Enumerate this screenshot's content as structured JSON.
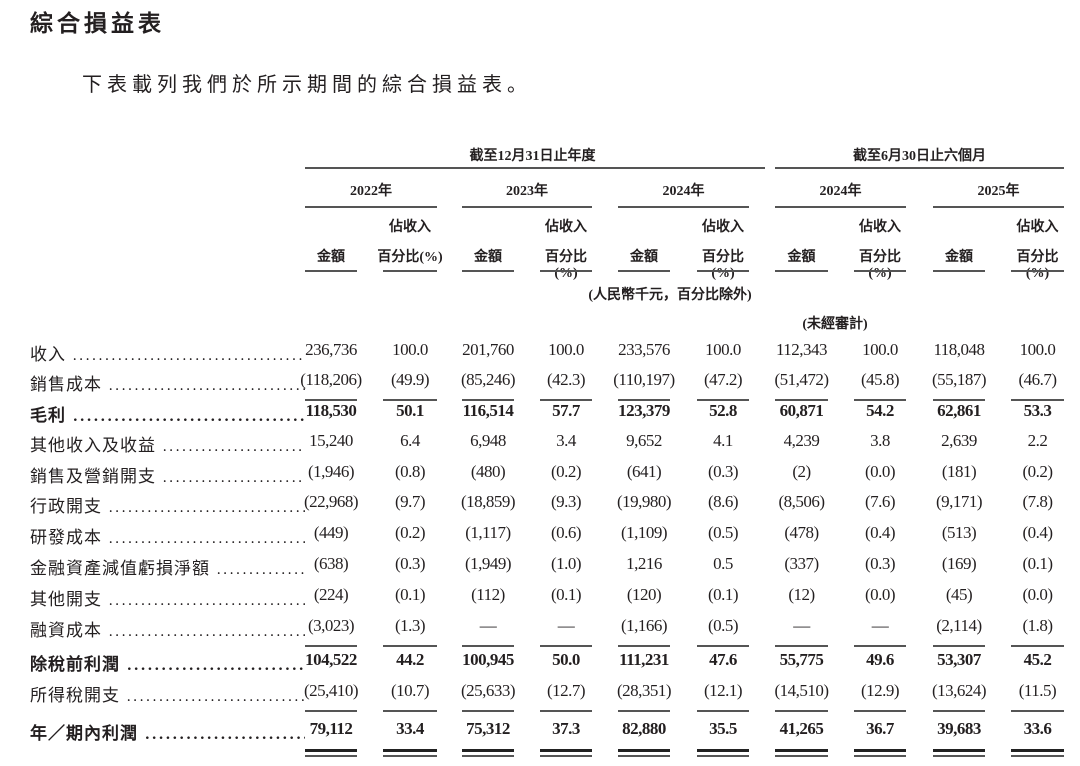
{
  "title": "綜合損益表",
  "intro": "下表載列我們於所示期間的綜合損益表。",
  "header": {
    "group_annual": "截至12月31日止年度",
    "group_interim": "截至6月30日止六個月",
    "years": [
      "2022年",
      "2023年",
      "2024年",
      "2024年",
      "2025年"
    ],
    "amount_label": "金額",
    "pct_label_line1": "佔收入",
    "pct_label_line2": "百分比(%)",
    "unit_note": "(人民幣千元，百分比除外)",
    "unaudited_note": "(未經審計)"
  },
  "rows": [
    {
      "label": "收入",
      "bold": false,
      "values": [
        "236,736",
        "100.0",
        "201,760",
        "100.0",
        "233,576",
        "100.0",
        "112,343",
        "100.0",
        "118,048",
        "100.0"
      ]
    },
    {
      "label": "銷售成本",
      "bold": false,
      "rule": "single",
      "values": [
        "(118,206)",
        "(49.9)",
        "(85,246)",
        "(42.3)",
        "(110,197)",
        "(47.2)",
        "(51,472)",
        "(45.8)",
        "(55,187)",
        "(46.7)"
      ]
    },
    {
      "label": "毛利",
      "bold": true,
      "values": [
        "118,530",
        "50.1",
        "116,514",
        "57.7",
        "123,379",
        "52.8",
        "60,871",
        "54.2",
        "62,861",
        "53.3"
      ]
    },
    {
      "label": "其他收入及收益",
      "bold": false,
      "values": [
        "15,240",
        "6.4",
        "6,948",
        "3.4",
        "9,652",
        "4.1",
        "4,239",
        "3.8",
        "2,639",
        "2.2"
      ]
    },
    {
      "label": "銷售及營銷開支",
      "bold": false,
      "values": [
        "(1,946)",
        "(0.8)",
        "(480)",
        "(0.2)",
        "(641)",
        "(0.3)",
        "(2)",
        "(0.0)",
        "(181)",
        "(0.2)"
      ]
    },
    {
      "label": "行政開支",
      "bold": false,
      "values": [
        "(22,968)",
        "(9.7)",
        "(18,859)",
        "(9.3)",
        "(19,980)",
        "(8.6)",
        "(8,506)",
        "(7.6)",
        "(9,171)",
        "(7.8)"
      ]
    },
    {
      "label": "研發成本",
      "bold": false,
      "values": [
        "(449)",
        "(0.2)",
        "(1,117)",
        "(0.6)",
        "(1,109)",
        "(0.5)",
        "(478)",
        "(0.4)",
        "(513)",
        "(0.4)"
      ]
    },
    {
      "label": "金融資產減值虧損淨額",
      "bold": false,
      "values": [
        "(638)",
        "(0.3)",
        "(1,949)",
        "(1.0)",
        "1,216",
        "0.5",
        "(337)",
        "(0.3)",
        "(169)",
        "(0.1)"
      ]
    },
    {
      "label": "其他開支",
      "bold": false,
      "values": [
        "(224)",
        "(0.1)",
        "(112)",
        "(0.1)",
        "(120)",
        "(0.1)",
        "(12)",
        "(0.0)",
        "(45)",
        "(0.0)"
      ]
    },
    {
      "label": "融資成本",
      "bold": false,
      "rule": "single",
      "values": [
        "(3,023)",
        "(1.3)",
        "—",
        "—",
        "(1,166)",
        "(0.5)",
        "—",
        "—",
        "(2,114)",
        "(1.8)"
      ]
    },
    {
      "label": "除稅前利潤",
      "bold": true,
      "values": [
        "104,522",
        "44.2",
        "100,945",
        "50.0",
        "111,231",
        "47.6",
        "55,775",
        "49.6",
        "53,307",
        "45.2"
      ]
    },
    {
      "label": "所得稅開支",
      "bold": false,
      "rule": "single",
      "values": [
        "(25,410)",
        "(10.7)",
        "(25,633)",
        "(12.7)",
        "(28,351)",
        "(12.1)",
        "(14,510)",
        "(12.9)",
        "(13,624)",
        "(11.5)"
      ]
    },
    {
      "label": "年／期內利潤",
      "bold": true,
      "rule": "double",
      "values": [
        "79,112",
        "33.4",
        "75,312",
        "37.3",
        "82,880",
        "35.5",
        "41,265",
        "36.7",
        "39,683",
        "33.6"
      ]
    }
  ]
}
